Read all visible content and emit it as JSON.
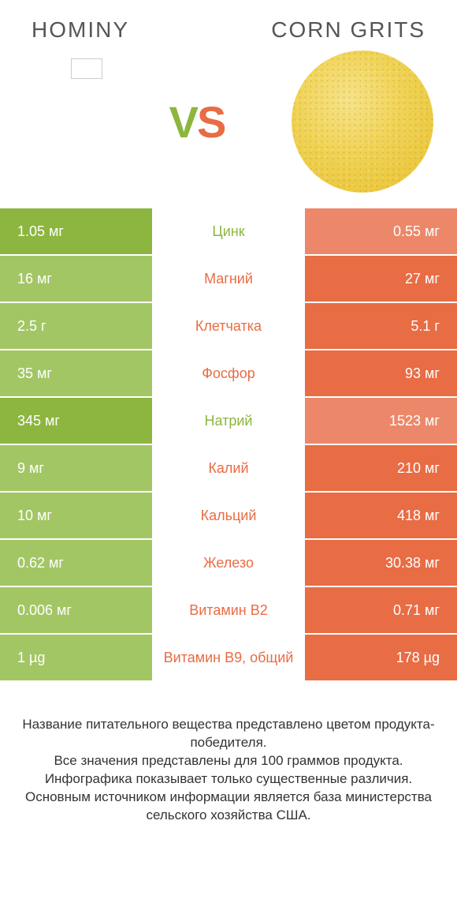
{
  "colors": {
    "left": "#8cb63f",
    "right": "#e86c44",
    "left_dim": "#a3c665",
    "right_dim": "#ec8869",
    "mid_text_winner_left": "#8cb63f",
    "mid_text_winner_right": "#e86c44",
    "header_text": "#555555"
  },
  "header": {
    "left": "Hominy",
    "right": "Corn Grits"
  },
  "vs": {
    "v": "V",
    "s": "S"
  },
  "rows": [
    {
      "label": "Цинк",
      "left": "1.05 мг",
      "right": "0.55 мг",
      "winner": "left"
    },
    {
      "label": "Магний",
      "left": "16 мг",
      "right": "27 мг",
      "winner": "right"
    },
    {
      "label": "Клетчатка",
      "left": "2.5 г",
      "right": "5.1 г",
      "winner": "right"
    },
    {
      "label": "Фосфор",
      "left": "35 мг",
      "right": "93 мг",
      "winner": "right"
    },
    {
      "label": "Натрий",
      "left": "345 мг",
      "right": "1523 мг",
      "winner": "left"
    },
    {
      "label": "Калий",
      "left": "9 мг",
      "right": "210 мг",
      "winner": "right"
    },
    {
      "label": "Кальций",
      "left": "10 мг",
      "right": "418 мг",
      "winner": "right"
    },
    {
      "label": "Железо",
      "left": "0.62 мг",
      "right": "30.38 мг",
      "winner": "right"
    },
    {
      "label": "Витамин B2",
      "left": "0.006 мг",
      "right": "0.71 мг",
      "winner": "right"
    },
    {
      "label": "Витамин B9, общий",
      "left": "1 µg",
      "right": "178 µg",
      "winner": "right"
    }
  ],
  "footer": {
    "l1": "Название питательного вещества представлено цветом продукта-победителя.",
    "l2": "Все значения представлены для 100 граммов продукта.",
    "l3": "Инфографика показывает только существенные различия.",
    "l4": "Основным источником информации является база министерства сельского хозяйства США."
  }
}
